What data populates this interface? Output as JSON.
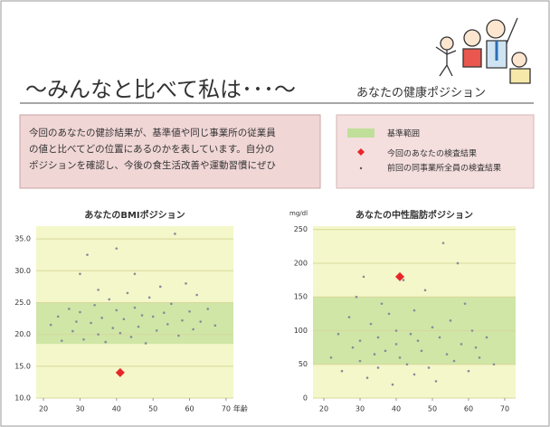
{
  "header": {
    "title": "～みんなと比べて私は･･･～",
    "subtitle": "あなたの健康ポジション"
  },
  "description": [
    "今回のあなたの健診結果が、基準値や同じ事業所の従業員",
    "の値と比べてどの位置にあるのかを表しています。自分の",
    "ポジションを確認し、今後の食生活改善や運動習慣にぜひ"
  ],
  "legend": [
    "基準範囲",
    "今回のあなたの検査結果",
    "前回の同事業所全員の検査結果"
  ],
  "chart_data": [
    {
      "type": "scatter",
      "title": "あなたのBMIポジション",
      "x_label": "年齢",
      "xlim": [
        18,
        72
      ],
      "ylim": [
        10,
        37
      ],
      "band": [
        18.5,
        25
      ],
      "band_color": "#cfe6a6",
      "plot_bg": "#f4f7c9",
      "grid": true,
      "xticks": [
        20,
        30,
        40,
        50,
        60,
        70
      ],
      "yticks": [
        {
          "value": 10,
          "label": "10.0"
        },
        {
          "value": 15,
          "label": "15.0"
        },
        {
          "value": 20,
          "label": "20.0"
        },
        {
          "value": 25,
          "label": "25.0"
        },
        {
          "value": 30,
          "label": "30.0"
        },
        {
          "value": 35,
          "label": "35.0"
        }
      ],
      "series": [
        {
          "color": "#8a8a9a",
          "marker": "dot",
          "x": [
            22,
            24,
            25,
            27,
            28,
            29,
            30,
            30,
            31,
            32,
            33,
            34,
            35,
            35,
            36,
            37,
            38,
            39,
            40,
            40,
            41,
            42,
            43,
            44,
            45,
            45,
            46,
            47,
            48,
            49,
            50,
            51,
            52,
            53,
            54,
            55,
            56,
            57,
            58,
            59,
            60,
            61,
            62,
            63,
            65,
            67
          ],
          "values": [
            21.5,
            22.8,
            19.0,
            24.0,
            20.5,
            22.0,
            29.5,
            23.5,
            19.2,
            32.5,
            21.8,
            24.6,
            20.0,
            27.0,
            22.6,
            18.8,
            25.5,
            21.0,
            23.8,
            33.5,
            20.2,
            22.4,
            26.5,
            19.6,
            24.2,
            29.5,
            21.2,
            23.0,
            18.6,
            25.8,
            22.8,
            20.6,
            27.5,
            23.4,
            21.6,
            24.8,
            35.8,
            19.8,
            22.2,
            28.0,
            23.6,
            20.8,
            26.2,
            22.0,
            24.0,
            21.4
          ]
        },
        {
          "color": "#e8262a",
          "marker": "diamond",
          "x": [
            41
          ],
          "values": [
            14.0
          ]
        }
      ]
    },
    {
      "type": "scatter",
      "title": "あなたの中性脂肪ポジション",
      "x_label": "",
      "y_unit": "mg/dl",
      "xlim": [
        17,
        73
      ],
      "ylim": [
        0,
        255
      ],
      "band": [
        50,
        150
      ],
      "band_color": "#cfe6a6",
      "plot_bg": "#f4f7c9",
      "grid": true,
      "xticks": [
        20,
        30,
        40,
        50,
        60,
        70
      ],
      "yticks": [
        0,
        50,
        100,
        150,
        200,
        250
      ],
      "series": [
        {
          "color": "#8a8a9a",
          "marker": "dot",
          "x": [
            22,
            24,
            25,
            27,
            28,
            29,
            30,
            30,
            31,
            32,
            33,
            34,
            35,
            35,
            36,
            37,
            38,
            39,
            40,
            40,
            41,
            42,
            43,
            44,
            45,
            45,
            46,
            47,
            48,
            49,
            50,
            51,
            52,
            53,
            54,
            55,
            56,
            57,
            58,
            59,
            60,
            61,
            62,
            63,
            65,
            67
          ],
          "values": [
            60,
            95,
            40,
            120,
            75,
            150,
            55,
            85,
            180,
            30,
            110,
            65,
            45,
            90,
            140,
            70,
            125,
            20,
            80,
            100,
            60,
            175,
            50,
            95,
            35,
            130,
            85,
            70,
            160,
            45,
            105,
            25,
            90,
            230,
            65,
            115,
            55,
            200,
            80,
            140,
            40,
            100,
            75,
            60,
            90,
            50
          ]
        },
        {
          "color": "#e8262a",
          "marker": "diamond",
          "x": [
            41
          ],
          "values": [
            180
          ]
        }
      ]
    }
  ]
}
